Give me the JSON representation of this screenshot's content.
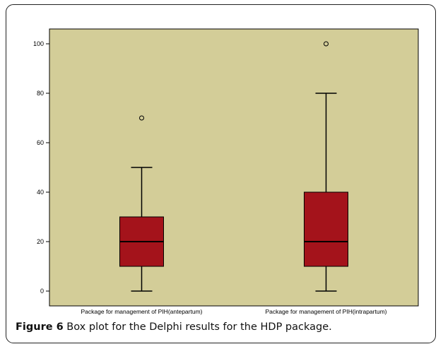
{
  "colors": {
    "plot_background": "#d3cd98",
    "box_fill": "#a4131b",
    "line": "#000000"
  },
  "caption": {
    "label": "Figure 6",
    "text": " Box plot for the Delphi results for the HDP package."
  },
  "chart_data": {
    "type": "box",
    "title": "",
    "xlabel": "",
    "ylabel": "",
    "ylim": [
      -6,
      106
    ],
    "yticks": [
      0,
      20,
      40,
      60,
      80,
      100
    ],
    "grid": false,
    "categories": [
      "Package for management of PIH(antepartum)",
      "Package for management of PIH(intrapartum)"
    ],
    "boxes": [
      {
        "category": "Package for management of PIH(antepartum)",
        "min": 0,
        "q1": 10,
        "median": 20,
        "q3": 30,
        "max": 50,
        "outliers": [
          70
        ]
      },
      {
        "category": "Package for management of PIH(intrapartum)",
        "min": 0,
        "q1": 10,
        "median": 20,
        "q3": 40,
        "max": 80,
        "outliers": [
          100
        ]
      }
    ]
  }
}
